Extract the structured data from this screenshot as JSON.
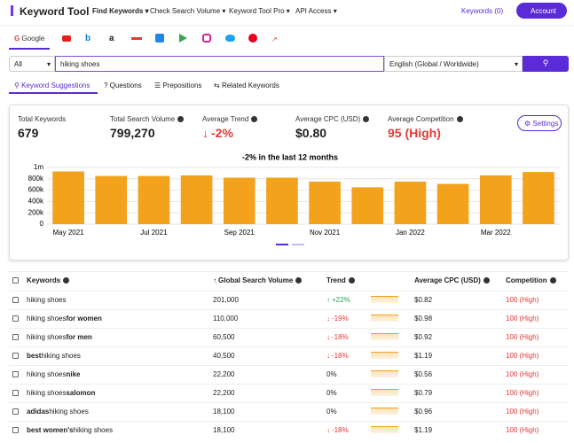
{
  "header": {
    "logo": "Keyword Tool",
    "nav": [
      "Find Keywords",
      "Check Search Volume",
      "Keyword Tool Pro",
      "API Access"
    ],
    "keywords_count": "Keywords (0)",
    "account": "Account"
  },
  "platforms": {
    "active": "Google"
  },
  "search": {
    "scope": "All",
    "query": "hiking shoes",
    "language": "English (Global / Worldwide)"
  },
  "tabs": [
    "Keyword Suggestions",
    "Questions",
    "Prepositions",
    "Related Keywords"
  ],
  "stats": [
    {
      "label": "Total Keywords",
      "value": "679"
    },
    {
      "label": "Total Search Volume",
      "value": "799,270"
    },
    {
      "label": "Average Trend",
      "value": "-2%",
      "color": "#e53935"
    },
    {
      "label": "Average CPC (USD)",
      "value": "$0.80"
    },
    {
      "label": "Average Competition",
      "value": "95 (High)",
      "color": "#e53935"
    }
  ],
  "settings": "Settings",
  "chart_data": {
    "type": "bar",
    "title": "-2% in the last 12 months",
    "color": "#f2a21b",
    "categories": [
      "May 2021",
      null,
      "Jul 2021",
      null,
      "Sep 2021",
      null,
      "Nov 2021",
      null,
      "Jan 2022",
      null,
      "Mar 2022",
      null
    ],
    "values": [
      930000,
      850000,
      850000,
      860000,
      820000,
      820000,
      750000,
      650000,
      750000,
      710000,
      860000,
      920000
    ],
    "ylim": [
      0,
      1000000
    ],
    "yticks": [
      0,
      {
        "value": 200000,
        "label": "200k"
      },
      {
        "value": 400000,
        "label": "400k"
      },
      {
        "value": 600000,
        "label": "600k"
      },
      {
        "value": 800000,
        "label": "800k"
      },
      {
        "value": 1000000,
        "label": "1m"
      }
    ],
    "grid": true
  },
  "table": {
    "columns": [
      "Keywords",
      "Global Search Volume",
      "Trend",
      "Average CPC (USD)",
      "Competition"
    ],
    "rows": [
      {
        "keyword": [
          {
            "text": "hiking shoes"
          }
        ],
        "volume": "201,000",
        "trend": "+22%",
        "cpc": "$0.82",
        "competition": "100 (High)"
      },
      {
        "keyword": [
          {
            "text": "hiking shoes"
          },
          {
            "text": "for women",
            "bold": true
          }
        ],
        "volume": "110,000",
        "trend": "-19%",
        "cpc": "$0.98",
        "competition": "100 (High)"
      },
      {
        "keyword": [
          {
            "text": "hiking shoes"
          },
          {
            "text": "for men",
            "bold": true
          }
        ],
        "volume": "60,500",
        "trend": "-18%",
        "cpc": "$0.92",
        "competition": "100 (High)"
      },
      {
        "keyword": [
          {
            "text": "best",
            "bold": true
          },
          {
            "text": "hiking shoes"
          }
        ],
        "volume": "40,500",
        "trend": "-18%",
        "cpc": "$1.19",
        "competition": "100 (High)"
      },
      {
        "keyword": [
          {
            "text": "hiking shoes"
          },
          {
            "text": "nike",
            "bold": true
          }
        ],
        "volume": "22,200",
        "trend": "0%",
        "cpc": "$0.56",
        "competition": "100 (High)"
      },
      {
        "keyword": [
          {
            "text": "hiking shoes"
          },
          {
            "text": "salomon",
            "bold": true
          }
        ],
        "volume": "22,200",
        "trend": "0%",
        "cpc": "$0.79",
        "competition": "100 (High)"
      },
      {
        "keyword": [
          {
            "text": "adidas",
            "bold": true
          },
          {
            "text": "hiking shoes"
          }
        ],
        "volume": "18,100",
        "trend": "0%",
        "cpc": "$0.96",
        "competition": "100 (High)"
      },
      {
        "keyword": [
          {
            "text": "best women's",
            "bold": true
          },
          {
            "text": "hiking shoes"
          }
        ],
        "volume": "18,100",
        "trend": "-18%",
        "cpc": "$1.19",
        "competition": "100 (High)"
      }
    ]
  }
}
